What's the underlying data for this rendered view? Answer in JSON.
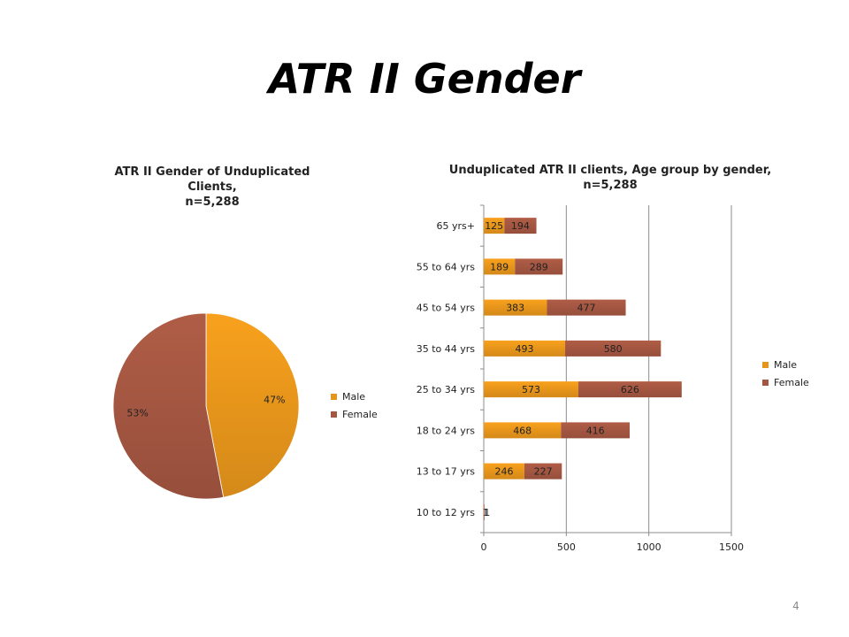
{
  "slide": {
    "title": "ATR II Gender",
    "page_number": "4"
  },
  "colors": {
    "male": "#E6951B",
    "female": "#A35641",
    "axis": "#8c8c8c",
    "gridline": "#8c8c8c"
  },
  "chart_data": [
    {
      "type": "pie",
      "title": "ATR II Gender of Unduplicated Clients, n=5,288",
      "title_lines": [
        "ATR II Gender of Unduplicated Clients,",
        "n=5,288"
      ],
      "categories": [
        "Male",
        "Female"
      ],
      "values": [
        47,
        53
      ],
      "data_labels": [
        "47%",
        "53%"
      ],
      "legend": [
        "Male",
        "Female"
      ],
      "legend_position": "right"
    },
    {
      "type": "bar",
      "orientation": "horizontal",
      "stacked": true,
      "title": "Unduplicated ATR II clients, Age group by gender, n=5,288",
      "title_lines": [
        "Unduplicated ATR II clients, Age group by gender,",
        "n=5,288"
      ],
      "categories": [
        "10 to 12 yrs",
        "13 to 17 yrs",
        "18 to 24 yrs",
        "25 to 34 yrs",
        "35 to 44 yrs",
        "45 to 54 yrs",
        "55 to 64 yrs",
        "65 yrs+"
      ],
      "series": [
        {
          "name": "Male",
          "values": [
            1,
            246,
            468,
            573,
            493,
            383,
            189,
            125
          ]
        },
        {
          "name": "Female",
          "values": [
            1,
            227,
            416,
            626,
            580,
            477,
            289,
            194
          ]
        }
      ],
      "xlim": [
        0,
        1500
      ],
      "xticks": [
        "0",
        "500",
        "1000",
        "1500"
      ],
      "grid": "vertical",
      "legend_position": "right"
    }
  ]
}
